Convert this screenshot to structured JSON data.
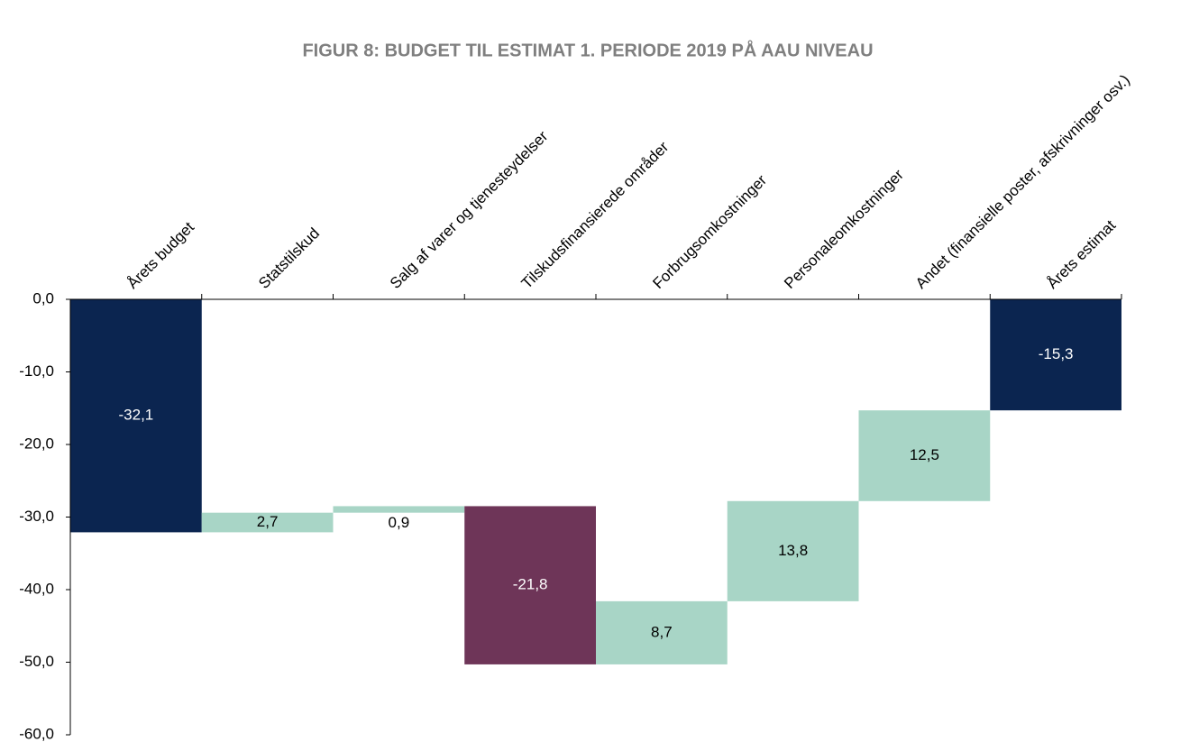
{
  "chart_data": {
    "type": "waterfall",
    "title": "FIGUR 8: BUDGET TIL ESTIMAT 1. PERIODE 2019 PÅ AAU NIVEAU",
    "categories": [
      "Årets budget",
      "Statstilskud",
      "Salg af varer og tjenesteydelser",
      "Tilskudsfinansierede områder",
      "Forbrugsomkostninger",
      "Personaleomkostninger",
      "Andet (finansielle poster, afskrivninger osv.)",
      "Årets estimat"
    ],
    "values": [
      -32.1,
      2.7,
      0.9,
      -21.8,
      8.7,
      13.8,
      12.5,
      -15.3
    ],
    "value_labels": [
      "-32,1",
      "2,7",
      "0,9",
      "-21,8",
      "8,7",
      "13,8",
      "12,5",
      "-15,3"
    ],
    "measure": [
      "absolute",
      "relative",
      "relative",
      "relative",
      "relative",
      "relative",
      "relative",
      "total"
    ],
    "colors": [
      "#0b2550",
      "#a8d5c6",
      "#a8d5c6",
      "#6e3558",
      "#a8d5c6",
      "#a8d5c6",
      "#a8d5c6",
      "#0b2550"
    ],
    "ylim": [
      -60,
      0
    ],
    "yticks": [
      {
        "value": 0,
        "label": "0,0"
      },
      {
        "value": -10,
        "label": "-10,0"
      },
      {
        "value": -20,
        "label": "-20,0"
      },
      {
        "value": -30,
        "label": "-30,0"
      },
      {
        "value": -40,
        "label": "-40,0"
      },
      {
        "value": -50,
        "label": "-50,0"
      },
      {
        "value": -60,
        "label": "-60,0"
      }
    ]
  }
}
